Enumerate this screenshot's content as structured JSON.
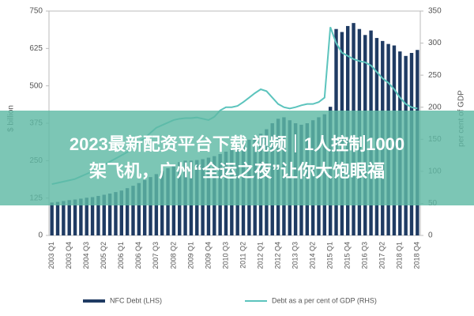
{
  "chart_data": {
    "type": "bar-line",
    "ylabel": "$ billion",
    "y2label": "per cent of GDP",
    "categories": [
      "2003 Q1",
      null,
      null,
      "2003 Q4",
      null,
      null,
      "2004 Q3",
      null,
      null,
      "2005 Q2",
      null,
      null,
      "2006 Q1",
      null,
      null,
      "2006 Q4",
      null,
      null,
      "2007 Q3",
      null,
      null,
      "2008 Q2",
      null,
      null,
      "2009 Q1",
      null,
      null,
      "2009 Q4",
      null,
      null,
      "2010 Q3",
      null,
      null,
      "2011 Q2",
      null,
      null,
      "2012 Q1",
      null,
      null,
      "2012 Q4",
      null,
      null,
      "2013 Q3",
      null,
      null,
      "2014 Q2",
      null,
      null,
      "2015 Q1",
      null,
      null,
      "2015 Q4",
      null,
      null,
      "2016 Q3",
      null,
      null,
      "2017 Q2",
      null,
      null,
      "2018 Q1",
      null,
      null,
      "2018 Q4"
    ],
    "series": [
      {
        "name": "NFC Debt (LHS)",
        "color": "#1f3b63",
        "kind": "bar",
        "values": [
          110,
          112,
          115,
          118,
          120,
          123,
          126,
          128,
          132,
          136,
          140,
          145,
          150,
          158,
          166,
          175,
          185,
          195,
          205,
          215,
          225,
          235,
          245,
          250,
          250,
          252,
          255,
          260,
          265,
          272,
          280,
          290,
          300,
          310,
          320,
          330,
          340,
          355,
          375,
          390,
          395,
          385,
          375,
          370,
          375,
          385,
          395,
          405,
          430,
          690,
          680,
          700,
          710,
          690,
          670,
          685,
          660,
          650,
          640,
          635,
          615,
          600,
          610,
          620
        ]
      },
      {
        "name": "Debt as a per cent of GDP (RHS)",
        "color": "#5cc4bd",
        "kind": "line",
        "axis": "y2",
        "values": [
          80,
          82,
          84,
          86,
          88,
          92,
          96,
          100,
          105,
          110,
          115,
          120,
          125,
          130,
          138,
          145,
          152,
          160,
          168,
          172,
          176,
          180,
          182,
          183,
          183,
          184,
          182,
          180,
          185,
          195,
          200,
          200,
          202,
          208,
          215,
          222,
          228,
          225,
          215,
          205,
          200,
          198,
          200,
          203,
          205,
          205,
          208,
          215,
          325,
          300,
          285,
          280,
          275,
          272,
          270,
          265,
          255,
          245,
          238,
          228,
          215,
          205,
          200,
          198
        ]
      }
    ],
    "ylim": [
      0,
      750
    ],
    "yticks": [
      0,
      125,
      250,
      375,
      500,
      625,
      750
    ],
    "y2lim": [
      0,
      350
    ],
    "y2ticks": [
      0,
      50,
      100,
      150,
      200,
      250,
      300,
      350
    ]
  },
  "overlay": {
    "lines": [
      "2023最新配资平台下载 视频｜1人控制1000",
      "架飞机，广州“全运之夜”让你大饱眼福"
    ]
  }
}
